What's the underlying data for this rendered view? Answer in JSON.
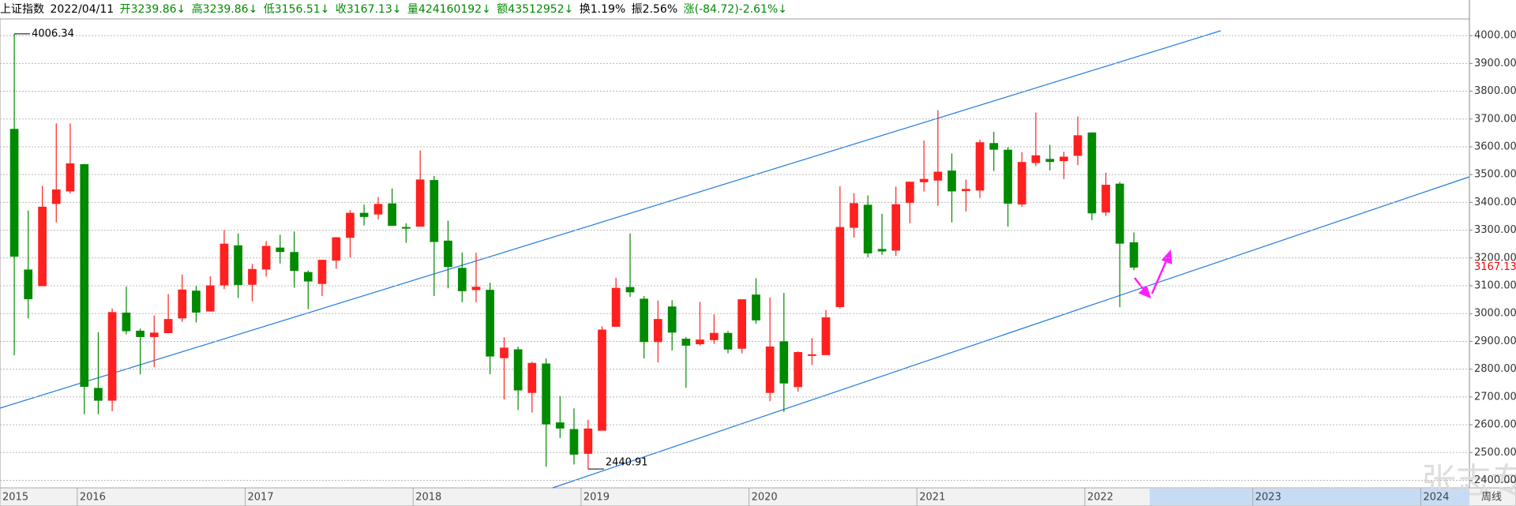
{
  "header": {
    "items": [
      "上证指数",
      "2022/04/11",
      "开3239.86↓",
      "高3239.86↓",
      "低3156.51↓",
      "收3167.13↓",
      "量424160192↓",
      "额43512952↓",
      "换1.19%",
      "振2.56%",
      "涨(-84.72)-2.61%↓"
    ]
  },
  "chart_data": {
    "type": "candlestick",
    "x": [
      2015.625,
      2015.708,
      2015.792,
      2015.875,
      2015.958,
      2016.042,
      2016.125,
      2016.208,
      2016.292,
      2016.375,
      2016.458,
      2016.542,
      2016.625,
      2016.708,
      2016.792,
      2016.875,
      2016.958,
      2017.042,
      2017.125,
      2017.208,
      2017.292,
      2017.375,
      2017.458,
      2017.542,
      2017.625,
      2017.708,
      2017.792,
      2017.875,
      2017.958,
      2018.042,
      2018.125,
      2018.208,
      2018.292,
      2018.375,
      2018.458,
      2018.542,
      2018.625,
      2018.708,
      2018.792,
      2018.875,
      2018.958,
      2019.042,
      2019.125,
      2019.208,
      2019.292,
      2019.375,
      2019.458,
      2019.542,
      2019.625,
      2019.708,
      2019.792,
      2019.875,
      2019.958,
      2020.042,
      2020.125,
      2020.208,
      2020.292,
      2020.375,
      2020.458,
      2020.542,
      2020.625,
      2020.708,
      2020.792,
      2020.875,
      2020.958,
      2021.042,
      2021.125,
      2021.208,
      2021.292,
      2021.375,
      2021.458,
      2021.542,
      2021.625,
      2021.708,
      2021.792,
      2021.875,
      2021.958,
      2022.042,
      2022.125,
      2022.208,
      2022.292
    ],
    "open": [
      3663,
      3157,
      3100,
      3396,
      3441,
      3536,
      2731,
      2688,
      3002,
      2937,
      2917,
      2931,
      2984,
      3081,
      3009,
      3103,
      3244,
      3105,
      3160,
      3236,
      3220,
      3148,
      3108,
      3192,
      3274,
      3361,
      3358,
      3395,
      3310,
      3314,
      3479,
      3261,
      3163,
      3086,
      3084,
      2841,
      2870,
      2716,
      2819,
      2607,
      2583,
      2497,
      2580,
      2954,
      3094,
      3052,
      2899,
      3024,
      2908,
      2891,
      2906,
      2929,
      2875,
      3067,
      2716,
      2899,
      2737,
      2851,
      2852,
      3025,
      3310,
      3390,
      3231,
      3228,
      3400,
      3474,
      3480,
      3513,
      3442,
      3444,
      3612,
      3588,
      3394,
      3543,
      3555,
      3550,
      3569,
      3650,
      3365,
      3466,
      3255
    ],
    "high": [
      4006.34,
      3371,
      3459,
      3684,
      3684,
      3539,
      2933,
      3018,
      3097,
      2946,
      2993,
      3070,
      3140,
      3100,
      3134,
      3301,
      3288,
      3178,
      3261,
      3284,
      3295,
      3155,
      3194,
      3276,
      3372,
      3392,
      3419,
      3450,
      3325,
      3587,
      3495,
      3334,
      3220,
      3219,
      3111,
      2915,
      2881,
      2827,
      2838,
      2703,
      2659,
      2618,
      2954,
      3129,
      3288,
      3063,
      3047,
      3048,
      2916,
      3042,
      2997,
      2937,
      3050,
      3127,
      3058,
      3074,
      2864,
      2912,
      3013,
      3458,
      3433,
      3425,
      3359,
      3457,
      3474,
      3623,
      3732,
      3576,
      3482,
      3626,
      3654,
      3599,
      3581,
      3723,
      3607,
      3582,
      3709,
      3652,
      3507,
      3474,
      3292
    ],
    "low": [
      2850,
      2983,
      3101,
      3328,
      3432,
      2638,
      2638,
      2649,
      2925,
      2781,
      2807,
      2929,
      2970,
      2968,
      3009,
      3088,
      3056,
      3044,
      3133,
      3180,
      3093,
      3016,
      3063,
      3161,
      3202,
      3317,
      3339,
      3316,
      3254,
      3314,
      3063,
      3091,
      3041,
      3041,
      2782,
      2691,
      2653,
      2644,
      2449,
      2552,
      2457,
      2440.91,
      2580,
      2952,
      3060,
      2838,
      2824,
      2867,
      2733,
      2885,
      2891,
      2857,
      2857,
      2963,
      2685,
      2646,
      2719,
      2815,
      2852,
      3019,
      3273,
      3202,
      3211,
      3208,
      3325,
      3439,
      3388,
      3328,
      3367,
      3416,
      3513,
      3313,
      3384,
      3531,
      3515,
      3484,
      3534,
      3336,
      3351,
      3023,
      3156
    ],
    "close": [
      3206,
      3053,
      3383,
      3445,
      3539,
      2738,
      2688,
      3004,
      2938,
      2917,
      2930,
      2979,
      3085,
      3005,
      3100,
      3250,
      3104,
      3159,
      3242,
      3223,
      3155,
      3117,
      3192,
      3273,
      3361,
      3349,
      3393,
      3317,
      3307,
      3481,
      3259,
      3169,
      3082,
      3095,
      2847,
      2876,
      2725,
      2821,
      2603,
      2588,
      2494,
      2585,
      2941,
      3091,
      3078,
      2899,
      2979,
      2933,
      2886,
      2905,
      2929,
      2872,
      3050,
      2977,
      2880,
      2750,
      2860,
      2852,
      2985,
      3310,
      3396,
      3218,
      3225,
      3392,
      3473,
      3483,
      3509,
      3441,
      3447,
      3615,
      3591,
      3397,
      3544,
      3568,
      3547,
      3563,
      3640,
      3362,
      3462,
      3253,
      3167
    ],
    "up_color": "#ff2020",
    "down_color": "#008a00",
    "xlim": [
      2015.54,
      2024.29
    ],
    "xticks": [
      2015,
      2016,
      2017,
      2018,
      2019,
      2020,
      2021,
      2022,
      2023,
      2024
    ],
    "ylim": [
      2373,
      4060
    ],
    "yticks": [
      {
        "value": 2400,
        "label": "2400.00"
      },
      {
        "value": 2500,
        "label": "2500.00"
      },
      {
        "value": 2600,
        "label": "2600.00"
      },
      {
        "value": 2700,
        "label": "2700.00"
      },
      {
        "value": 2800,
        "label": "2800.00"
      },
      {
        "value": 2900,
        "label": "2900.00"
      },
      {
        "value": 3000,
        "label": "3000.00"
      },
      {
        "value": 3100,
        "label": "3100.00"
      },
      {
        "value": 3200,
        "label": "3200.00"
      },
      {
        "value": 3300,
        "label": "3300.00"
      },
      {
        "value": 3400,
        "label": "3400.00"
      },
      {
        "value": 3500,
        "label": "3500.00"
      },
      {
        "value": 3600,
        "label": "3600.00"
      },
      {
        "value": 3700,
        "label": "3700.00"
      },
      {
        "value": 3800,
        "label": "3800.00"
      },
      {
        "value": 3900,
        "label": "3900.00"
      },
      {
        "value": 4000,
        "label": "4000.00"
      }
    ],
    "grid": true,
    "max_label": 4006.34,
    "min_label": 2440.91,
    "last_price": 3167.13,
    "period": "周线"
  },
  "watermark": "张志专栏"
}
